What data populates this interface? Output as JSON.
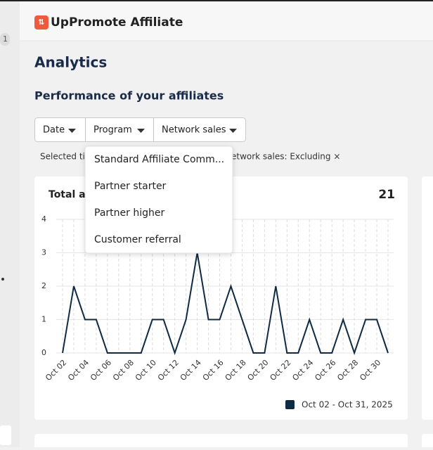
{
  "header": {
    "brand": "UpPromote Affiliate"
  },
  "sidebar": {
    "badge": "1"
  },
  "page": {
    "title": "Analytics",
    "section": "Performance of your affiliates"
  },
  "filters": {
    "buttons": [
      "Date",
      "Program",
      "Network sales"
    ],
    "applied": [
      "Selected ti",
      "Network sales: Excluding ×"
    ]
  },
  "dropdown": {
    "items": [
      "Standard Affiliate Comm...",
      "Partner starter",
      "Partner higher",
      "Customer referral"
    ]
  },
  "chart_data": {
    "type": "line",
    "title": "Total affiliates",
    "total": 21,
    "categories": [
      "Oct 02",
      null,
      "Oct 04",
      null,
      "Oct 06",
      null,
      "Oct 08",
      null,
      "Oct 10",
      null,
      "Oct 12",
      null,
      "Oct 14",
      null,
      "Oct 16",
      null,
      "Oct 18",
      null,
      "Oct 20",
      null,
      "Oct 22",
      null,
      "Oct 24",
      null,
      "Oct 26",
      null,
      "Oct 28",
      null,
      "Oct 30",
      null
    ],
    "series": [
      {
        "name": "Oct 02 - Oct 31, 2025",
        "color": "#0f2a44",
        "values": [
          0,
          2,
          1,
          1,
          0,
          0,
          0,
          0,
          1,
          1,
          0,
          1,
          3,
          1,
          1,
          2,
          1,
          0,
          0,
          2,
          0,
          0,
          1,
          0,
          0,
          1,
          0,
          1,
          1,
          0
        ]
      }
    ],
    "ylim": [
      0,
      4
    ],
    "yticks": [
      0,
      1,
      2,
      3,
      4
    ],
    "grid": true
  }
}
